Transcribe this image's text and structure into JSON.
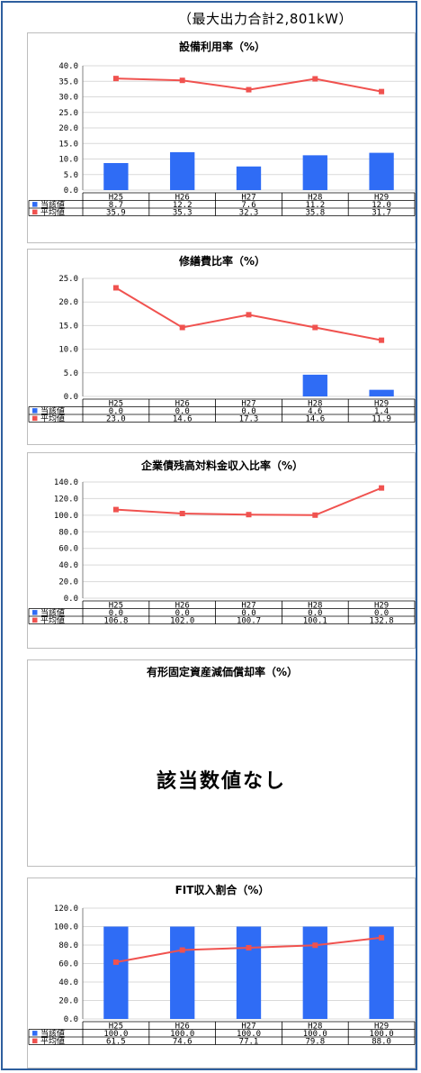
{
  "header": "（最大出力合計2,801kW）",
  "legend": {
    "current": "当該値",
    "average": "平均値"
  },
  "colors": {
    "bar": "#2f6cf5",
    "line": "#f0524f",
    "grid": "#d9d9d9",
    "axis": "#808080"
  },
  "no_data_message": "該当数値なし",
  "chart_data": [
    {
      "type": "bar+line",
      "title": "設備利用率（%）",
      "categories": [
        "H25",
        "H26",
        "H27",
        "H28",
        "H29"
      ],
      "ylim": [
        0,
        40
      ],
      "yticks": [
        "0.0",
        "5.0",
        "10.0",
        "15.0",
        "20.0",
        "25.0",
        "30.0",
        "35.0",
        "40.0"
      ],
      "series": [
        {
          "name": "当該値",
          "kind": "bar",
          "values": [
            8.7,
            12.2,
            7.6,
            11.2,
            12.0
          ],
          "labels": [
            "8.7",
            "12.2",
            "7.6",
            "11.2",
            "12.0"
          ]
        },
        {
          "name": "平均値",
          "kind": "line",
          "values": [
            35.9,
            35.3,
            32.3,
            35.8,
            31.7
          ],
          "labels": [
            "35.9",
            "35.3",
            "32.3",
            "35.8",
            "31.7"
          ]
        }
      ]
    },
    {
      "type": "bar+line",
      "title": "修繕費比率（%）",
      "categories": [
        "H25",
        "H26",
        "H27",
        "H28",
        "H29"
      ],
      "ylim": [
        0,
        25
      ],
      "yticks": [
        "0.0",
        "5.0",
        "10.0",
        "15.0",
        "20.0",
        "25.0"
      ],
      "series": [
        {
          "name": "当該値",
          "kind": "bar",
          "values": [
            0.0,
            0.0,
            0.0,
            4.6,
            1.4
          ],
          "labels": [
            "0.0",
            "0.0",
            "0.0",
            "4.6",
            "1.4"
          ]
        },
        {
          "name": "平均値",
          "kind": "line",
          "values": [
            23.0,
            14.6,
            17.3,
            14.6,
            11.9
          ],
          "labels": [
            "23.0",
            "14.6",
            "17.3",
            "14.6",
            "11.9"
          ]
        }
      ]
    },
    {
      "type": "bar+line",
      "title": "企業債残高対料金収入比率（%）",
      "categories": [
        "H25",
        "H26",
        "H27",
        "H28",
        "H29"
      ],
      "ylim": [
        0,
        140
      ],
      "yticks": [
        "0.0",
        "20.0",
        "40.0",
        "60.0",
        "80.0",
        "100.0",
        "120.0",
        "140.0"
      ],
      "series": [
        {
          "name": "当該値",
          "kind": "bar",
          "values": [
            0.0,
            0.0,
            0.0,
            0.0,
            0.0
          ],
          "labels": [
            "0.0",
            "0.0",
            "0.0",
            "0.0",
            "0.0"
          ]
        },
        {
          "name": "平均値",
          "kind": "line",
          "values": [
            106.8,
            102.0,
            100.7,
            100.1,
            132.8
          ],
          "labels": [
            "106.8",
            "102.0",
            "100.7",
            "100.1",
            "132.8"
          ]
        }
      ]
    },
    {
      "type": "none",
      "title": "有形固定資産減価償却率（%）"
    },
    {
      "type": "bar+line",
      "title": "FIT収入割合（%）",
      "categories": [
        "H25",
        "H26",
        "H27",
        "H28",
        "H29"
      ],
      "ylim": [
        0,
        120
      ],
      "yticks": [
        "0.0",
        "20.0",
        "40.0",
        "60.0",
        "80.0",
        "100.0",
        "120.0"
      ],
      "series": [
        {
          "name": "当該値",
          "kind": "bar",
          "values": [
            100.0,
            100.0,
            100.0,
            100.0,
            100.0
          ],
          "labels": [
            "100.0",
            "100.0",
            "100.0",
            "100.0",
            "100.0"
          ]
        },
        {
          "name": "平均値",
          "kind": "line",
          "values": [
            61.5,
            74.6,
            77.1,
            79.8,
            88.0
          ],
          "labels": [
            "61.5",
            "74.6",
            "77.1",
            "79.8",
            "88.0"
          ]
        }
      ]
    }
  ]
}
